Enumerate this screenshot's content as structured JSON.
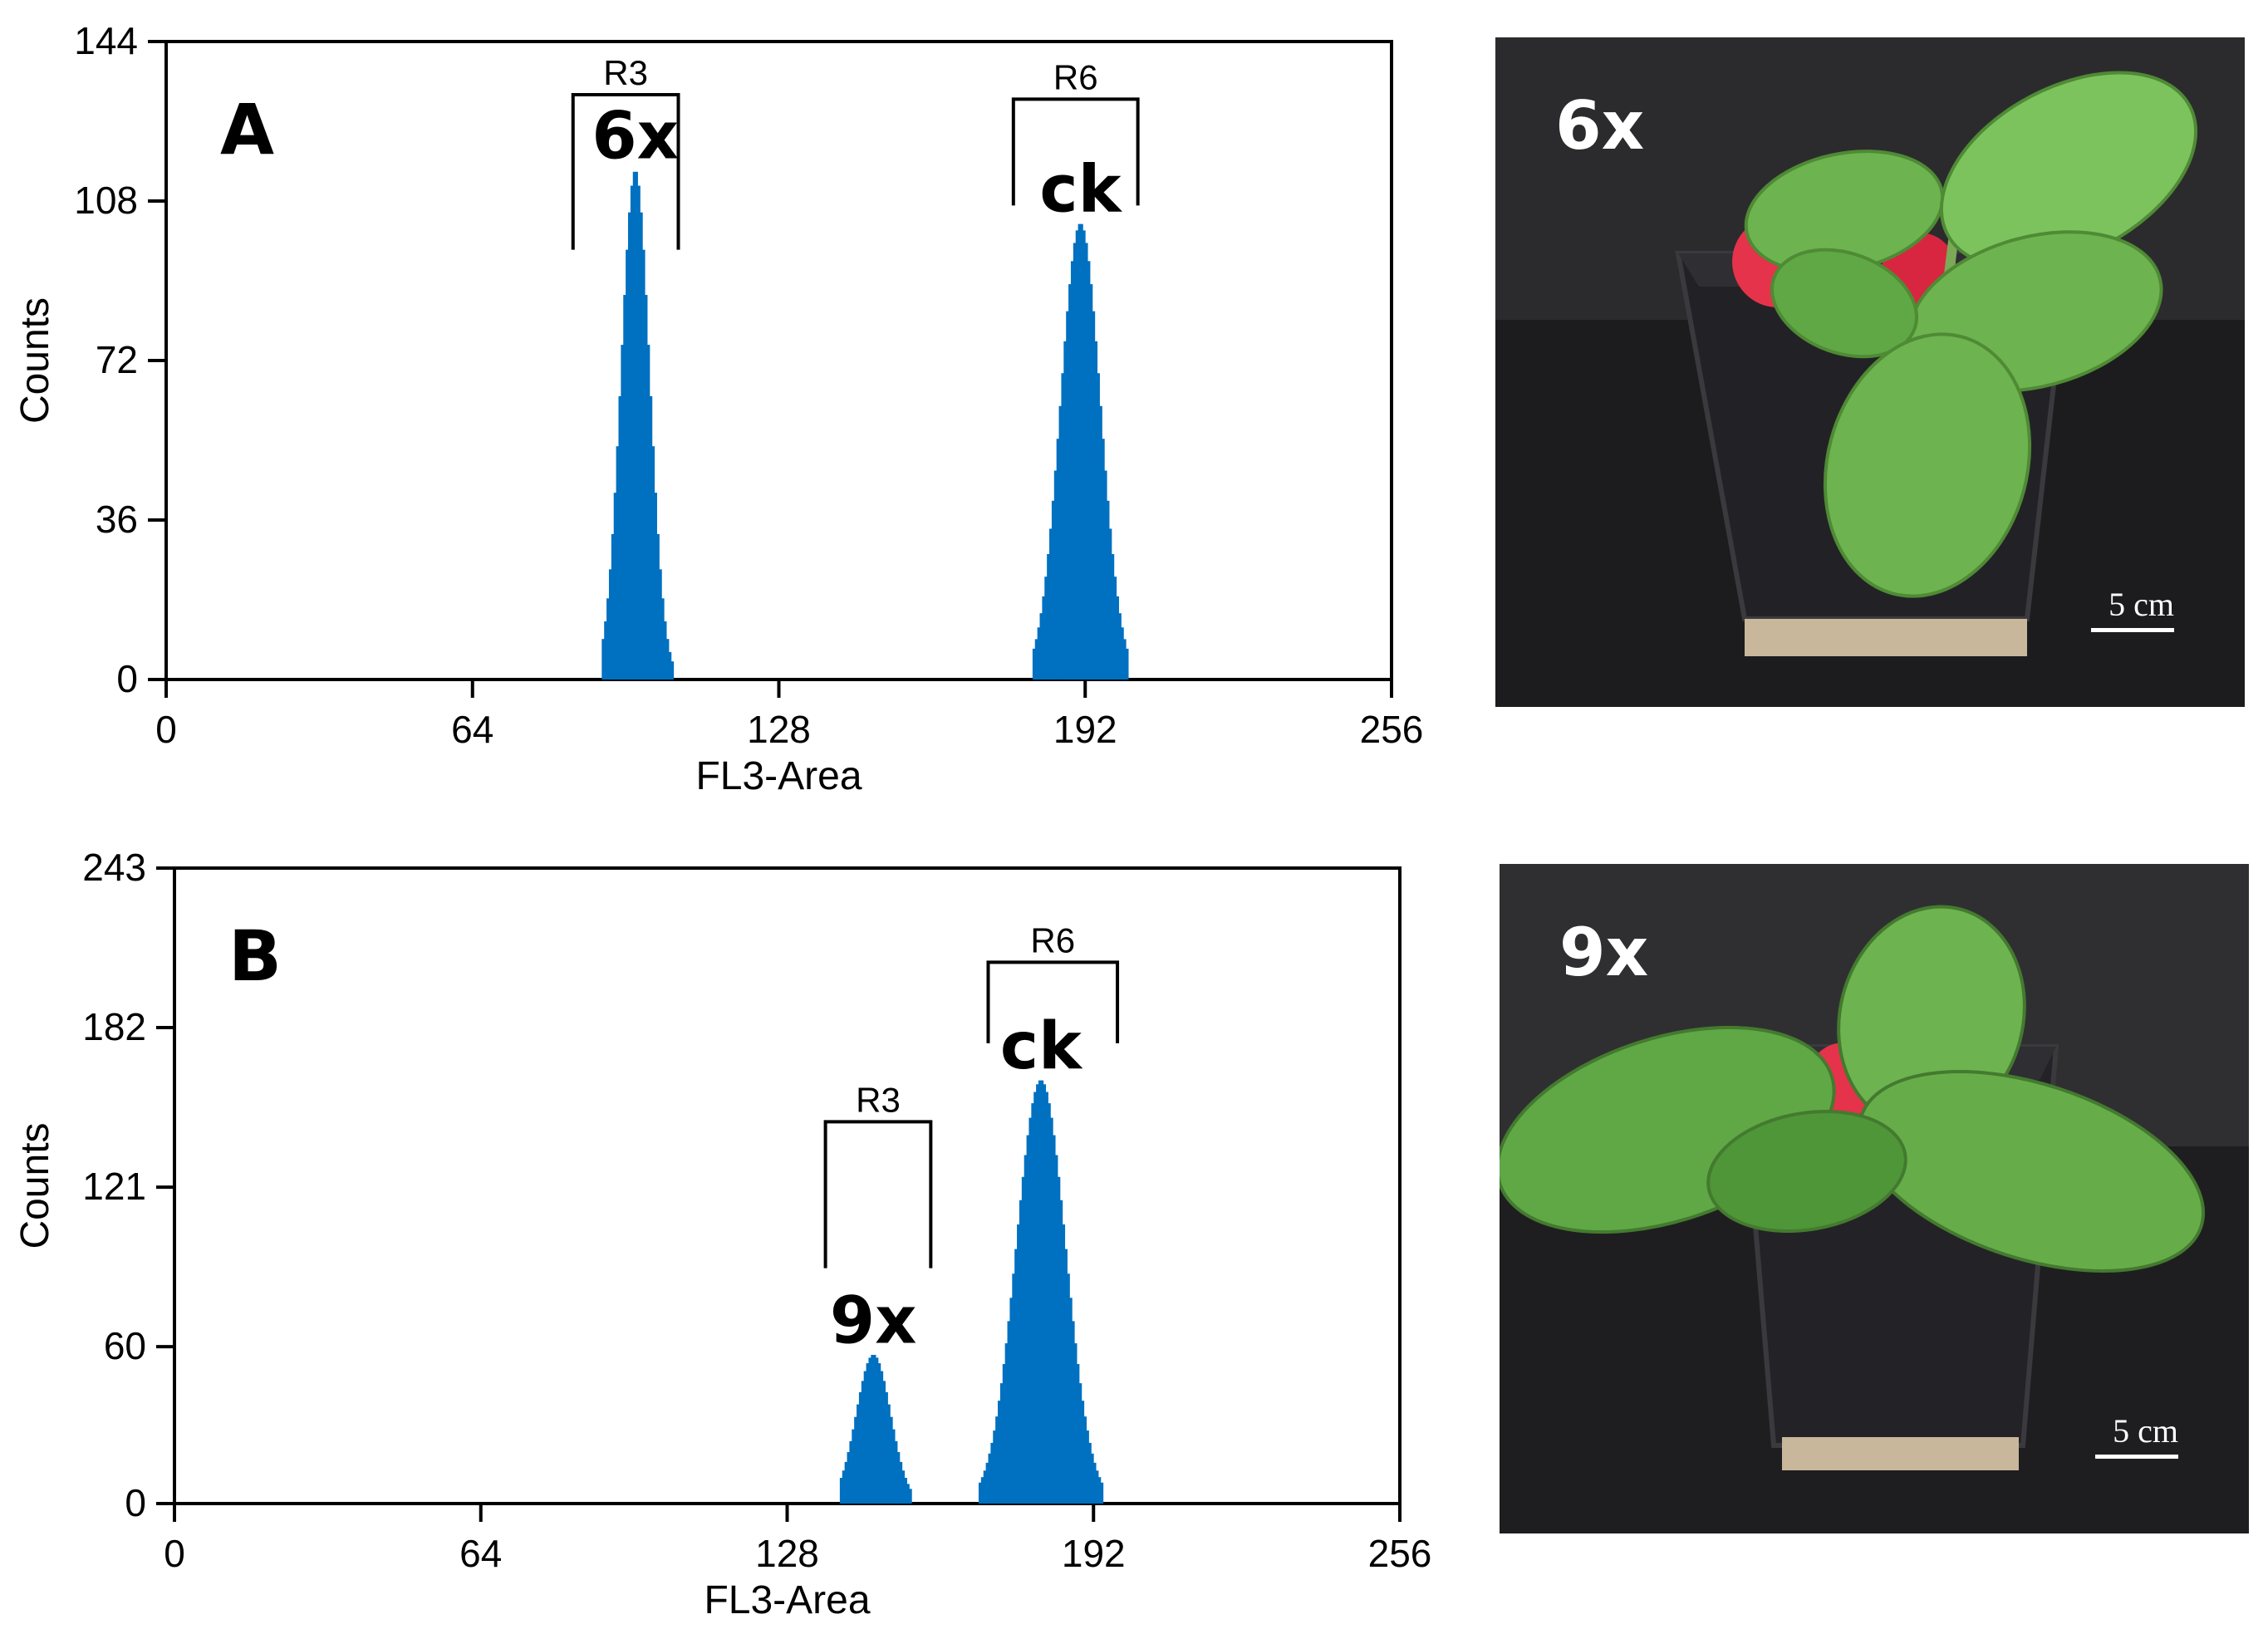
{
  "chart_data": [
    {
      "type": "histogram",
      "panel_label": "A",
      "xlabel": "FL3-Area",
      "ylabel": "Counts",
      "xlim": [
        0,
        256
      ],
      "ylim": [
        0,
        144
      ],
      "x_ticks": [
        0,
        64,
        128,
        192,
        256
      ],
      "y_ticks": [
        0,
        36,
        72,
        108,
        144
      ],
      "bar_color": "#0070c0",
      "peaks": [
        {
          "label": "6x",
          "center": 98,
          "height": 115,
          "sigma": 3.0,
          "range": [
            91,
            106
          ]
        },
        {
          "label": "ck",
          "center": 191,
          "height": 103,
          "sigma": 4.2,
          "range": [
            181,
            201
          ]
        }
      ],
      "gates": [
        {
          "label": "R3",
          "x_range": [
            85,
            107
          ],
          "y_top": 132,
          "y_bottom": 97
        },
        {
          "label": "R6",
          "x_range": [
            177,
            203
          ],
          "y_top": 131,
          "y_bottom": 107
        }
      ]
    },
    {
      "type": "histogram",
      "panel_label": "B",
      "xlabel": "FL3-Area",
      "ylabel": "Counts",
      "xlim": [
        0,
        256
      ],
      "ylim": [
        0,
        243
      ],
      "x_ticks": [
        0,
        64,
        128,
        192,
        256
      ],
      "y_ticks": [
        0,
        60,
        121,
        182,
        243
      ],
      "bar_color": "#0070c0",
      "peaks": [
        {
          "label": "9x",
          "center": 146,
          "height": 57,
          "sigma": 3.6,
          "range": [
            139,
            154
          ]
        },
        {
          "label": "ck",
          "center": 181,
          "height": 162,
          "sigma": 5.2,
          "range": [
            168,
            194
          ]
        }
      ],
      "gates": [
        {
          "label": "R3",
          "x_range": [
            136,
            158
          ],
          "y_top": 146,
          "y_bottom": 90
        },
        {
          "label": "R6",
          "x_range": [
            170,
            197
          ],
          "y_top": 207,
          "y_bottom": 176
        }
      ]
    }
  ],
  "photos": [
    {
      "ploidy_label": "6x",
      "scale_text": "5 cm",
      "background": "#2b2b2d",
      "leaf_color": "#6db34f",
      "pot_color": "#222226"
    },
    {
      "ploidy_label": "9x",
      "scale_text": "5 cm",
      "background": "#2f2f31",
      "leaf_color": "#5fa845",
      "pot_color": "#232327"
    }
  ]
}
